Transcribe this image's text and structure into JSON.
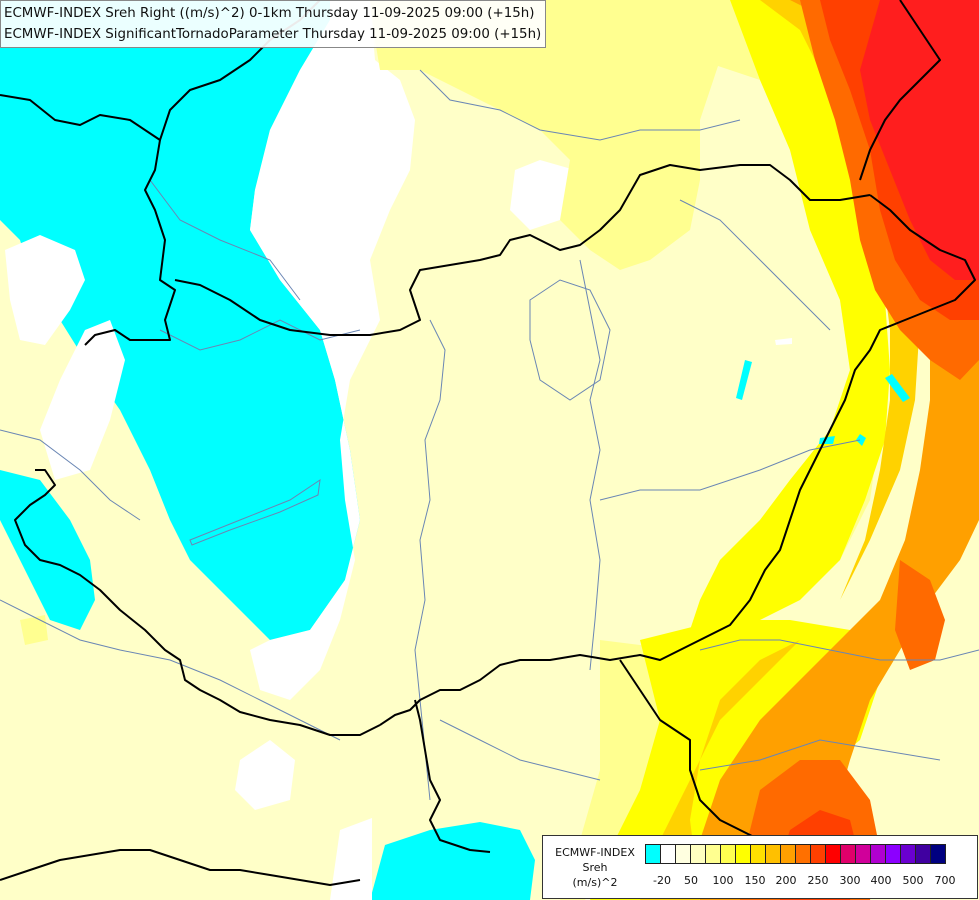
{
  "header": {
    "line1": "ECMWF-INDEX Sreh Right ((m/s)^2) 0-1km Thursday 11-09-2025 09:00 (+15h)",
    "line2": "ECMWF-INDEX SignificantTornadoParameter Thursday 11-09-2025 09:00 (+15h)"
  },
  "legend": {
    "title1": "ECMWF-INDEX",
    "title2": "Sreh",
    "title3": "(m/s)^2",
    "swatch_colors": [
      "#00ffff",
      "#ffffff",
      "#ffffe0",
      "#ffffc0",
      "#ffff90",
      "#ffff50",
      "#ffff00",
      "#ffe000",
      "#ffc000",
      "#ffa000",
      "#ff7000",
      "#ff4000",
      "#ff0000",
      "#e0006a",
      "#d0009a",
      "#b000d0",
      "#8c00ff",
      "#6a00d0",
      "#4000a0",
      "#000080"
    ],
    "ticks": [
      "-20",
      "50",
      "100",
      "150",
      "200",
      "250",
      "300",
      "400",
      "500",
      "700"
    ]
  },
  "map": {
    "field_colors": {
      "cyan": "#00ffff",
      "white": "#ffffff",
      "pale_yellow": "#ffffc8",
      "light_yellow": "#ffff90",
      "yellow": "#ffff00",
      "gold": "#ffd200",
      "orange": "#ffa000",
      "dark_orange": "#ff6a00",
      "red_orange": "#ff4000",
      "red": "#ff1e1e"
    }
  }
}
